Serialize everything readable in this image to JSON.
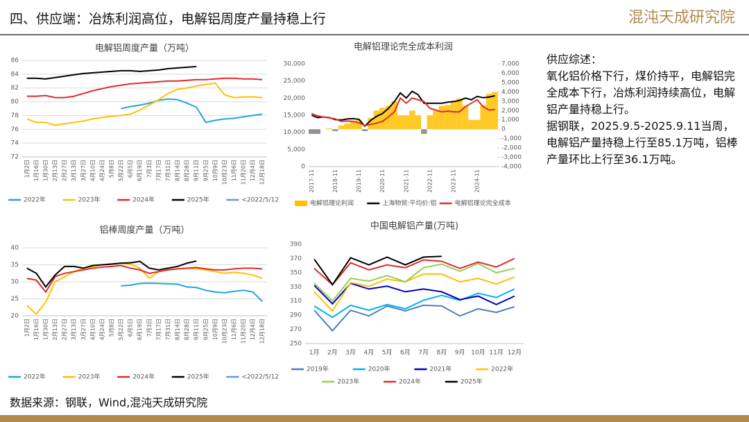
{
  "header": {
    "title": "四、供应端：冶炼利润高位，电解铝周度产量持稳上行",
    "logo": "混沌天成研究院"
  },
  "summary": {
    "heading": "供应综述：",
    "paragraphs": [
      "氧化铝价格下行，煤价持平，电解铝完全成本下行，冶炼利润持续高位，电解铝产量持稳上行。",
      "据钢联，2025.9.5-2025.9.11当周，电解铝产量持稳上行至85.1万吨，铝棒产量环比上行至36.1万吨。"
    ]
  },
  "source": "数据来源：钢联，Wind,混沌天成研究院",
  "chart_data": [
    {
      "type": "line",
      "title": "电解铝周度产量（万吨）",
      "grid": true,
      "categories": [
        "1月2日",
        "1月16日",
        "1月30日",
        "2月13日",
        "2月27日",
        "3月13日",
        "3月27日",
        "4月10日",
        "4月24日",
        "5月8日",
        "5月22日",
        "6月5日",
        "6月19日",
        "7月3日",
        "7月17日",
        "7月31日",
        "8月14日",
        "8月28日",
        "9月11日",
        "9月25日",
        "10月9日",
        "10月23日",
        "11月6日",
        "11月20日",
        "12月4日",
        "12月18日"
      ],
      "ylim": [
        72,
        86
      ],
      "yticks": [
        72,
        74,
        76,
        78,
        80,
        82,
        84,
        86
      ],
      "series": [
        {
          "name": "2022年",
          "color": "#1fa5e0",
          "values": [
            null,
            null,
            null,
            null,
            null,
            null,
            null,
            null,
            null,
            null,
            79.0,
            79.3,
            79.5,
            79.8,
            80.2,
            80.4,
            80.3,
            79.8,
            79.2,
            77.0,
            77.3,
            77.5,
            77.6,
            77.8,
            78.0,
            78.2
          ]
        },
        {
          "name": "2023年",
          "color": "#ffc000",
          "values": [
            77.5,
            77.0,
            77.0,
            76.6,
            76.8,
            77.0,
            77.2,
            77.5,
            77.7,
            77.9,
            78.0,
            78.2,
            78.8,
            79.5,
            80.3,
            81.2,
            81.8,
            82.0,
            82.3,
            82.5,
            82.7,
            81.0,
            80.6,
            80.7,
            80.7,
            80.6
          ]
        },
        {
          "name": "2024年",
          "color": "#e02a2a",
          "values": [
            80.8,
            80.8,
            80.9,
            80.6,
            80.6,
            80.8,
            81.2,
            81.6,
            81.9,
            82.2,
            82.4,
            82.6,
            82.7,
            82.8,
            82.9,
            83.0,
            83.0,
            83.1,
            83.2,
            83.2,
            83.3,
            83.4,
            83.4,
            83.3,
            83.3,
            83.2
          ]
        },
        {
          "name": "2025年",
          "color": "#000000",
          "values": [
            83.4,
            83.4,
            83.3,
            83.5,
            83.7,
            83.9,
            84.1,
            84.2,
            84.3,
            84.4,
            84.5,
            84.5,
            84.4,
            84.5,
            84.6,
            84.8,
            84.9,
            85.0,
            85.1,
            null,
            null,
            null,
            null,
            null,
            null,
            null
          ]
        },
        {
          "name": "<2022/5/12",
          "color": "#5b9bd5",
          "values": [
            null,
            null,
            null,
            null,
            null,
            null,
            null,
            null,
            null,
            null,
            null,
            null,
            null,
            null,
            null,
            null,
            null,
            null,
            null,
            null,
            null,
            null,
            null,
            null,
            null,
            null
          ]
        }
      ]
    },
    {
      "type": "line",
      "title": "电解铝理论完全成本利润",
      "grid": false,
      "categories": [
        "2017-11",
        null,
        null,
        null,
        "2018-11",
        null,
        null,
        null,
        "2019-11",
        null,
        null,
        null,
        "2020-11",
        null,
        null,
        null,
        "2021-11",
        null,
        null,
        null,
        "2022-11",
        null,
        null,
        null,
        "2023-11",
        null,
        null,
        null,
        "2024-11",
        null,
        null,
        null
      ],
      "ylim": [
        0,
        30000
      ],
      "yticks": [
        0,
        {
          "value": 5000,
          "label": "5,000"
        },
        {
          "value": 10000,
          "label": "10,000"
        },
        {
          "value": 15000,
          "label": "15,000"
        },
        {
          "value": 20000,
          "label": "20,000"
        },
        {
          "value": 25000,
          "label": "25,000"
        },
        {
          "value": 30000,
          "label": "30,000"
        }
      ],
      "y2lim": [
        -4000,
        7000
      ],
      "y2ticks": [
        {
          "value": -4000,
          "label": "-4,000"
        },
        {
          "value": -3000,
          "label": "-3,000"
        },
        {
          "value": -2000,
          "label": "-2,000"
        },
        {
          "value": -1000,
          "label": "-1,000"
        },
        0,
        {
          "value": 1000,
          "label": "1,000"
        },
        {
          "value": 2000,
          "label": "2,000"
        },
        {
          "value": 3000,
          "label": "3,000"
        },
        {
          "value": 4000,
          "label": "4,000"
        },
        {
          "value": 5000,
          "label": "5,000"
        },
        {
          "value": 6000,
          "label": "6,000"
        },
        {
          "value": 7000,
          "label": "7,000"
        }
      ],
      "series": [
        {
          "name": "电解铝理论利润",
          "type": "bar",
          "axis": "y2",
          "color": "#ffc000",
          "neg_color": "#808080",
          "values": [
            -500,
            -500,
            0,
            100,
            -200,
            400,
            600,
            800,
            1000,
            -200,
            1200,
            2000,
            2300,
            2500,
            3000,
            1500,
            1500,
            2000,
            1500,
            -500,
            1500,
            2000,
            2500,
            2600,
            3000,
            3300,
            2500,
            1000,
            1000,
            2600,
            3800,
            4000
          ]
        },
        {
          "name": "上海物贸:平均价:铝",
          "color": "#000000",
          "values": [
            15000,
            14300,
            14500,
            14300,
            13700,
            13600,
            13900,
            14000,
            13800,
            11800,
            13500,
            14700,
            15500,
            17000,
            19000,
            21500,
            20000,
            22000,
            21000,
            18500,
            18500,
            18500,
            18500,
            18800,
            19000,
            19300,
            20000,
            19500,
            20500,
            20100,
            20300,
            20700
          ]
        },
        {
          "name": "电解铝理论完全成本",
          "color": "#e02a2a",
          "values": [
            15500,
            14800,
            14500,
            14200,
            13900,
            13200,
            13300,
            13200,
            12800,
            12000,
            12300,
            12700,
            13200,
            14500,
            16000,
            20000,
            18500,
            20000,
            19500,
            19000,
            17000,
            16500,
            16000,
            16200,
            16000,
            16000,
            17500,
            18500,
            19500,
            17500,
            16500,
            16700
          ]
        }
      ]
    },
    {
      "type": "line",
      "title": "铝棒周度产量（万吨）",
      "grid": true,
      "categories": [
        "1月2日",
        "1月16日",
        "1月30日",
        "2月13日",
        "2月27日",
        "3月13日",
        "3月27日",
        "4月10日",
        "4月24日",
        "5月8日",
        "5月22日",
        "6月5日",
        "6月19日",
        "7月3日",
        "7月17日",
        "7月31日",
        "8月14日",
        "8月28日",
        "9月11日",
        "9月25日",
        "10月9日",
        "10月23日",
        "11月6日",
        "11月20日",
        "12月4日",
        "12月18日"
      ],
      "ylim": [
        20,
        40
      ],
      "yticks": [
        20,
        25,
        30,
        35,
        40
      ],
      "series": [
        {
          "name": "2022年",
          "color": "#1fa5e0",
          "values": [
            null,
            null,
            null,
            null,
            null,
            null,
            null,
            null,
            null,
            null,
            28.8,
            29.0,
            29.5,
            29.6,
            29.5,
            29.4,
            29.3,
            28.5,
            28.3,
            27.5,
            27.0,
            26.8,
            27.2,
            27.5,
            27.0,
            24.2
          ]
        },
        {
          "name": "2023年",
          "color": "#ffc000",
          "values": [
            23.0,
            20.5,
            24.0,
            30.0,
            31.5,
            33.0,
            34.0,
            34.5,
            35.0,
            35.3,
            35.5,
            35.2,
            34.0,
            31.0,
            33.0,
            33.5,
            33.8,
            34.0,
            33.8,
            33.5,
            33.0,
            32.5,
            32.8,
            32.5,
            32.0,
            31.0
          ]
        },
        {
          "name": "2024年",
          "color": "#e02a2a",
          "values": [
            31.0,
            30.5,
            27.0,
            31.5,
            32.5,
            33.0,
            33.5,
            34.0,
            34.3,
            34.5,
            34.8,
            34.0,
            33.5,
            32.5,
            33.0,
            33.5,
            33.8,
            34.0,
            34.2,
            33.8,
            33.5,
            33.5,
            33.8,
            34.0,
            34.0,
            33.8
          ]
        },
        {
          "name": "2025年",
          "color": "#000000",
          "values": [
            34.0,
            32.5,
            28.5,
            32.0,
            34.5,
            34.5,
            34.0,
            34.8,
            35.0,
            35.2,
            35.5,
            35.6,
            36.0,
            34.0,
            33.5,
            34.0,
            34.5,
            35.5,
            36.1,
            null,
            null,
            null,
            null,
            null,
            null,
            null
          ]
        },
        {
          "name": "<2022/5/12",
          "color": "#5b9bd5",
          "values": [
            null,
            null,
            null,
            null,
            null,
            null,
            null,
            null,
            null,
            null,
            null,
            null,
            null,
            null,
            null,
            null,
            null,
            null,
            null,
            null,
            null,
            null,
            null,
            null,
            null,
            null
          ]
        }
      ]
    },
    {
      "type": "line",
      "title": "中国电解铝产量(万吨)",
      "grid": false,
      "categories": [
        "1月",
        "2月",
        "3月",
        "4月",
        "5月",
        "6月",
        "7月",
        "8月",
        "9月",
        "10月",
        "11月",
        "12月"
      ],
      "ylim": [
        250,
        390
      ],
      "yticks": [
        250,
        270,
        290,
        310,
        330,
        350,
        370,
        390
      ],
      "series": [
        {
          "name": "2019年",
          "color": "#4a7ebb",
          "values": [
            297,
            268,
            297,
            289,
            303,
            296,
            304,
            303,
            289,
            299,
            294,
            302
          ]
        },
        {
          "name": "2020年",
          "color": "#00b0f0",
          "values": [
            303,
            287,
            304,
            297,
            305,
            299,
            311,
            318,
            311,
            321,
            315,
            327
          ]
        },
        {
          "name": "2021年",
          "color": "#0000c0",
          "values": [
            332,
            306,
            335,
            327,
            331,
            323,
            327,
            323,
            312,
            317,
            305,
            317
          ]
        },
        {
          "name": "2022年",
          "color": "#ffc000",
          "values": [
            323,
            296,
            336,
            331,
            341,
            337,
            348,
            348,
            337,
            342,
            334,
            344
          ]
        },
        {
          "name": "2023年",
          "color": "#92d050",
          "values": [
            335,
            310,
            342,
            338,
            346,
            337,
            357,
            362,
            352,
            363,
            350,
            356
          ]
        },
        {
          "name": "2024年",
          "color": "#e02a2a",
          "values": [
            356,
            333,
            364,
            354,
            361,
            357,
            368,
            366,
            356,
            365,
            358,
            370
          ]
        },
        {
          "name": "2025年",
          "color": "#000000",
          "values": [
            369,
            333,
            371,
            361,
            372,
            361,
            372,
            373,
            null,
            null,
            null,
            null
          ]
        }
      ]
    }
  ]
}
